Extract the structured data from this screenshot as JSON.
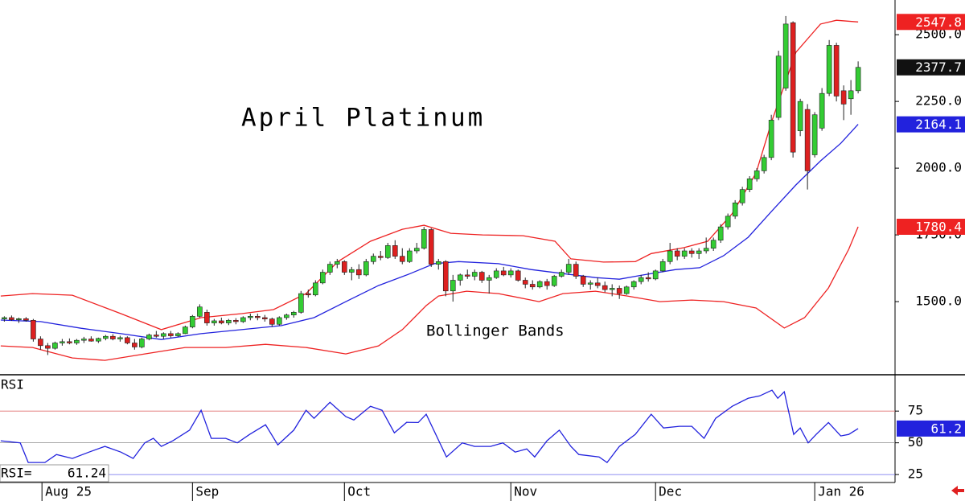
{
  "chart_data": [
    {
      "type": "candlestick",
      "title": "April Platinum",
      "annotation": "Bollinger Bands",
      "up_color": "#33cc33",
      "down_color": "#dd2020",
      "ylim": [
        1229,
        2630
      ],
      "yticks": [
        {
          "value": 2500,
          "label": "2500.0"
        },
        {
          "value": 2250,
          "label": "2250.0"
        },
        {
          "value": 2000,
          "label": "2000.0"
        },
        {
          "value": 1750,
          "label": "1750.0"
        },
        {
          "value": 1500,
          "label": "1500.0"
        }
      ],
      "xlim": [
        -0.6,
        123.1
      ],
      "ohlc": [
        [
          1435,
          1445,
          1425,
          1440
        ],
        [
          1440,
          1448,
          1428,
          1432
        ],
        [
          1432,
          1440,
          1420,
          1436
        ],
        [
          1436,
          1442,
          1425,
          1430
        ],
        [
          1430,
          1435,
          1350,
          1360
        ],
        [
          1360,
          1370,
          1320,
          1335
        ],
        [
          1335,
          1345,
          1300,
          1325
        ],
        [
          1325,
          1350,
          1320,
          1345
        ],
        [
          1345,
          1360,
          1335,
          1350
        ],
        [
          1350,
          1362,
          1340,
          1345
        ],
        [
          1345,
          1360,
          1338,
          1355
        ],
        [
          1355,
          1368,
          1345,
          1360
        ],
        [
          1360,
          1370,
          1350,
          1352
        ],
        [
          1352,
          1365,
          1345,
          1362
        ],
        [
          1362,
          1375,
          1355,
          1370
        ],
        [
          1370,
          1378,
          1355,
          1360
        ],
        [
          1360,
          1372,
          1350,
          1365
        ],
        [
          1365,
          1370,
          1340,
          1345
        ],
        [
          1345,
          1360,
          1320,
          1330
        ],
        [
          1330,
          1365,
          1325,
          1360
        ],
        [
          1360,
          1380,
          1355,
          1375
        ],
        [
          1375,
          1390,
          1365,
          1370
        ],
        [
          1370,
          1385,
          1360,
          1380
        ],
        [
          1380,
          1390,
          1365,
          1372
        ],
        [
          1372,
          1385,
          1368,
          1380
        ],
        [
          1380,
          1410,
          1378,
          1405
        ],
        [
          1405,
          1450,
          1400,
          1445
        ],
        [
          1445,
          1490,
          1440,
          1480
        ],
        [
          1460,
          1470,
          1410,
          1420
        ],
        [
          1420,
          1435,
          1410,
          1428
        ],
        [
          1428,
          1440,
          1415,
          1420
        ],
        [
          1420,
          1435,
          1412,
          1430
        ],
        [
          1430,
          1438,
          1415,
          1425
        ],
        [
          1425,
          1445,
          1420,
          1440
        ],
        [
          1440,
          1455,
          1430,
          1445
        ],
        [
          1445,
          1455,
          1430,
          1440
        ],
        [
          1440,
          1450,
          1425,
          1435
        ],
        [
          1435,
          1440,
          1405,
          1415
        ],
        [
          1415,
          1445,
          1410,
          1440
        ],
        [
          1440,
          1455,
          1432,
          1450
        ],
        [
          1450,
          1465,
          1440,
          1460
        ],
        [
          1460,
          1540,
          1455,
          1530
        ],
        [
          1530,
          1545,
          1515,
          1525
        ],
        [
          1525,
          1580,
          1520,
          1570
        ],
        [
          1570,
          1620,
          1565,
          1610
        ],
        [
          1610,
          1650,
          1600,
          1640
        ],
        [
          1640,
          1660,
          1625,
          1650
        ],
        [
          1650,
          1655,
          1600,
          1610
        ],
        [
          1610,
          1630,
          1580,
          1620
        ],
        [
          1620,
          1640,
          1585,
          1600
        ],
        [
          1600,
          1660,
          1595,
          1650
        ],
        [
          1650,
          1680,
          1640,
          1670
        ],
        [
          1670,
          1690,
          1655,
          1665
        ],
        [
          1665,
          1720,
          1660,
          1710
        ],
        [
          1710,
          1730,
          1660,
          1670
        ],
        [
          1670,
          1700,
          1640,
          1650
        ],
        [
          1650,
          1700,
          1645,
          1690
        ],
        [
          1690,
          1720,
          1680,
          1700
        ],
        [
          1700,
          1780,
          1695,
          1770
        ],
        [
          1770,
          1775,
          1630,
          1640
        ],
        [
          1640,
          1660,
          1620,
          1650
        ],
        [
          1650,
          1655,
          1520,
          1540
        ],
        [
          1540,
          1600,
          1500,
          1580
        ],
        [
          1580,
          1605,
          1560,
          1600
        ],
        [
          1600,
          1620,
          1585,
          1595
        ],
        [
          1595,
          1620,
          1580,
          1610
        ],
        [
          1610,
          1615,
          1570,
          1580
        ],
        [
          1580,
          1600,
          1530,
          1590
        ],
        [
          1590,
          1625,
          1585,
          1615
        ],
        [
          1615,
          1630,
          1595,
          1600
        ],
        [
          1600,
          1625,
          1590,
          1615
        ],
        [
          1615,
          1620,
          1575,
          1580
        ],
        [
          1580,
          1590,
          1550,
          1565
        ],
        [
          1565,
          1580,
          1545,
          1555
        ],
        [
          1555,
          1580,
          1550,
          1575
        ],
        [
          1575,
          1585,
          1545,
          1560
        ],
        [
          1560,
          1600,
          1555,
          1595
        ],
        [
          1595,
          1620,
          1590,
          1610
        ],
        [
          1610,
          1660,
          1600,
          1640
        ],
        [
          1640,
          1650,
          1585,
          1595
        ],
        [
          1595,
          1600,
          1555,
          1565
        ],
        [
          1565,
          1580,
          1545,
          1570
        ],
        [
          1570,
          1590,
          1550,
          1560
        ],
        [
          1560,
          1575,
          1535,
          1545
        ],
        [
          1545,
          1565,
          1520,
          1550
        ],
        [
          1550,
          1560,
          1510,
          1530
        ],
        [
          1530,
          1560,
          1525,
          1555
        ],
        [
          1555,
          1580,
          1545,
          1575
        ],
        [
          1575,
          1600,
          1565,
          1590
        ],
        [
          1590,
          1610,
          1575,
          1585
        ],
        [
          1585,
          1620,
          1580,
          1615
        ],
        [
          1615,
          1660,
          1610,
          1650
        ],
        [
          1650,
          1720,
          1640,
          1690
        ],
        [
          1690,
          1700,
          1655,
          1670
        ],
        [
          1670,
          1700,
          1660,
          1690
        ],
        [
          1690,
          1700,
          1665,
          1680
        ],
        [
          1680,
          1700,
          1660,
          1690
        ],
        [
          1690,
          1740,
          1680,
          1700
        ],
        [
          1700,
          1740,
          1690,
          1730
        ],
        [
          1730,
          1790,
          1720,
          1780
        ],
        [
          1780,
          1830,
          1770,
          1820
        ],
        [
          1820,
          1880,
          1810,
          1870
        ],
        [
          1870,
          1930,
          1860,
          1920
        ],
        [
          1920,
          1970,
          1910,
          1960
        ],
        [
          1960,
          2000,
          1950,
          1990
        ],
        [
          1990,
          2050,
          1980,
          2040
        ],
        [
          2040,
          2200,
          2030,
          2180
        ],
        [
          2190,
          2440,
          2180,
          2420
        ],
        [
          2300,
          2570,
          2290,
          2540
        ],
        [
          2545,
          2550,
          2040,
          2060
        ],
        [
          2140,
          2260,
          2120,
          2250
        ],
        [
          2220,
          2240,
          1920,
          1990
        ],
        [
          2050,
          2210,
          2040,
          2200
        ],
        [
          2150,
          2300,
          2140,
          2280
        ],
        [
          2280,
          2480,
          2270,
          2460
        ],
        [
          2460,
          2470,
          2250,
          2270
        ],
        [
          2290,
          2310,
          2180,
          2240
        ],
        [
          2260,
          2330,
          2200,
          2290
        ],
        [
          2290,
          2400,
          2280,
          2377.7
        ]
      ],
      "last_color": "#111111",
      "series": [
        {
          "color": "#ee2222",
          "x": [
            -0.5,
            3.9,
            9.4,
            16.1,
            21.7,
            27.2,
            32.8,
            37.2,
            41.7,
            46.1,
            50.6,
            55,
            58,
            61.7,
            66.1,
            71.7,
            76.1,
            78.3,
            82.8,
            87.2,
            89.4,
            93.9,
            97.2,
            100.6,
            103.9,
            106.1,
            109.4,
            112.8,
            115,
            118
          ],
          "values": [
            1521,
            1530,
            1524,
            1455,
            1395,
            1440,
            1455,
            1470,
            1530,
            1650,
            1726,
            1771,
            1786,
            1756,
            1750,
            1747,
            1726,
            1660,
            1648,
            1650,
            1680,
            1702,
            1726,
            1830,
            1982,
            2178,
            2434,
            2540,
            2554,
            2547.8
          ]
        },
        {
          "color": "#2222dd",
          "x": [
            -0.5,
            5,
            10.6,
            16.1,
            21.7,
            27.2,
            32.8,
            38.3,
            42.8,
            47.2,
            51.7,
            56.1,
            59.4,
            62.8,
            68.3,
            72.8,
            77.2,
            81.7,
            85,
            88.3,
            92.8,
            96.1,
            99.4,
            102.8,
            106.1,
            109.4,
            112.8,
            115.6,
            118
          ],
          "values": [
            1431,
            1425,
            1400,
            1380,
            1358,
            1380,
            1395,
            1410,
            1440,
            1500,
            1560,
            1605,
            1642,
            1650,
            1642,
            1620,
            1605,
            1590,
            1584,
            1600,
            1620,
            1627,
            1672,
            1741,
            1840,
            1937,
            2027,
            2093,
            2164.1
          ]
        },
        {
          "color": "#ee2222",
          "x": [
            -0.5,
            3.9,
            9.4,
            13.9,
            19.4,
            25,
            30.6,
            36.1,
            41.7,
            47.2,
            51.7,
            55,
            58.3,
            60,
            63.9,
            68.3,
            73.9,
            77.2,
            81.7,
            86.1,
            90.6,
            95,
            99.4,
            103.9,
            107.8,
            110.6,
            113.9,
            116.7,
            118
          ],
          "values": [
            1334,
            1328,
            1289,
            1280,
            1304,
            1328,
            1328,
            1340,
            1328,
            1304,
            1334,
            1395,
            1485,
            1521,
            1539,
            1530,
            1500,
            1530,
            1539,
            1521,
            1500,
            1506,
            1500,
            1476,
            1401,
            1440,
            1551,
            1696,
            1780.4
          ]
        }
      ]
    },
    {
      "type": "line",
      "title": "RSI",
      "readout_label": "RSI=",
      "ylim": [
        20,
        103
      ],
      "yticks": [
        75,
        50,
        25
      ],
      "xlim": [
        -0.6,
        123.1
      ],
      "xticks": [
        {
          "value": 5.2,
          "label": "Aug 25"
        },
        {
          "value": 26,
          "label": "Sep"
        },
        {
          "value": 47,
          "label": "Oct"
        },
        {
          "value": 70,
          "label": "Nov"
        },
        {
          "value": 90,
          "label": "Dec"
        },
        {
          "value": 112,
          "label": "Jan 26"
        }
      ],
      "hlines": [
        {
          "value": 75,
          "color": "#e07070"
        },
        {
          "value": 50,
          "color": "#888888"
        },
        {
          "value": 25,
          "color": "#6a6aee"
        }
      ],
      "series": [
        {
          "color": "#2222dd",
          "value_labels_last": "61.2",
          "x": [
            -0.5,
            2.2,
            3.3,
            5.6,
            7.2,
            9.4,
            11.7,
            13.9,
            16.1,
            17.8,
            19.4,
            20.6,
            21.7,
            23.3,
            25.6,
            27.2,
            28.6,
            30.6,
            32.2,
            33.9,
            36.1,
            37.8,
            40,
            41.7,
            42.8,
            45,
            47.2,
            48.3,
            50.6,
            52.2,
            53.9,
            55.6,
            57.2,
            58.3,
            61.1,
            63.3,
            65,
            67.2,
            68.9,
            70.6,
            72.2,
            73.3,
            75,
            76.7,
            78.3,
            79.4,
            82.2,
            83.3,
            85,
            87.2,
            89.4,
            91.1,
            93.3,
            95,
            96.7,
            98.3,
            100.6,
            102.8,
            104.4,
            106.1,
            106.9,
            107.8,
            109.1,
            110,
            111.1,
            112.2,
            113.9,
            115.6,
            116.7,
            118
          ],
          "values": [
            51.6,
            50,
            34.5,
            34.5,
            40.8,
            37.7,
            42.7,
            47.2,
            42.7,
            37.7,
            50,
            53.5,
            47.2,
            51.6,
            60,
            75.6,
            53.5,
            53.5,
            50,
            56.6,
            64.2,
            48.4,
            60,
            75.6,
            69.3,
            81.9,
            70.6,
            68,
            78.8,
            75.6,
            57.9,
            66.1,
            66,
            72.5,
            38.9,
            50,
            47.2,
            47.2,
            50,
            42.7,
            45.2,
            38.9,
            51.6,
            60,
            47.2,
            40.8,
            38.9,
            34.5,
            47.2,
            56.6,
            72.5,
            61.7,
            63,
            63,
            53.5,
            69.3,
            78.8,
            85.1,
            87,
            91.5,
            85.1,
            90.2,
            56.6,
            61.7,
            50,
            56.6,
            66,
            55.4,
            56.6,
            61.24
          ]
        }
      ]
    }
  ]
}
